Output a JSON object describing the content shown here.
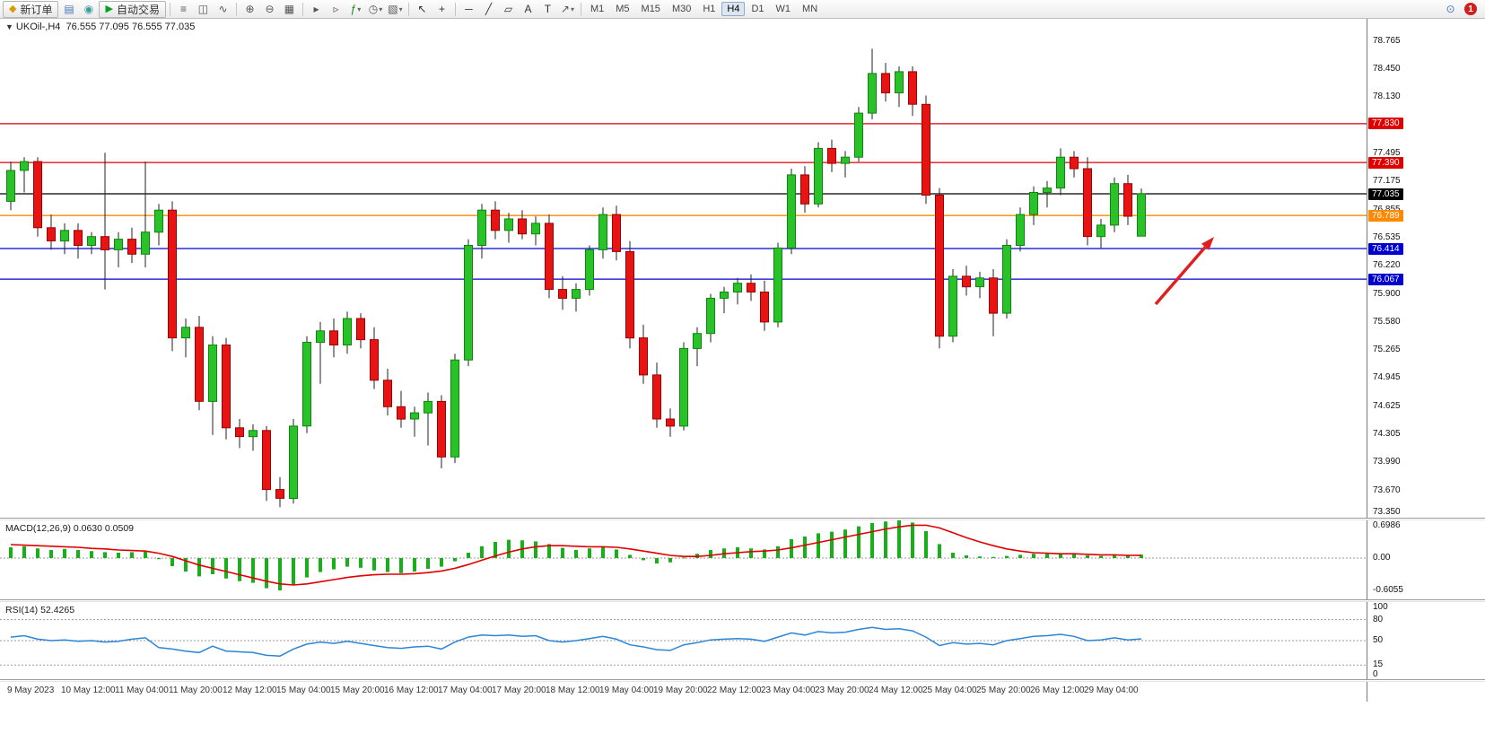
{
  "toolbar": {
    "items": [
      {
        "type": "button",
        "name": "new-order-button",
        "icon": "new-order-icon",
        "glyph": "◆",
        "glyph_color": "#d89b00",
        "label": "新订单"
      },
      {
        "type": "icon",
        "name": "chart-window-icon",
        "glyph": "▤",
        "glyph_color": "#4a74b8"
      },
      {
        "type": "icon",
        "name": "expert-advisor-icon",
        "glyph": "◉",
        "glyph_color": "#3a9ea0"
      },
      {
        "type": "button",
        "name": "auto-trading-button",
        "icon": "autotrading-play-icon",
        "glyph": "▶",
        "glyph_color": "#00a020",
        "label": "自动交易"
      },
      {
        "type": "sep"
      },
      {
        "type": "icon",
        "name": "bar-chart-icon",
        "glyph": "≡",
        "glyph_color": "#555555"
      },
      {
        "type": "icon",
        "name": "candlestick-chart-icon",
        "glyph": "◫",
        "glyph_color": "#555555"
      },
      {
        "type": "icon",
        "name": "line-chart-icon",
        "glyph": "∿",
        "glyph_color": "#555555"
      },
      {
        "type": "sep"
      },
      {
        "type": "icon",
        "name": "zoom-in-icon",
        "glyph": "⊕",
        "glyph_color": "#555555"
      },
      {
        "type": "icon",
        "name": "zoom-out-icon",
        "glyph": "⊖",
        "glyph_color": "#555555"
      },
      {
        "type": "icon",
        "name": "tile-windows-icon",
        "glyph": "▦",
        "glyph_color": "#555555"
      },
      {
        "type": "sep"
      },
      {
        "type": "icon",
        "name": "auto-scroll-icon",
        "glyph": "▸",
        "glyph_color": "#555555"
      },
      {
        "type": "icon",
        "name": "chart-shift-icon",
        "glyph": "▹",
        "glyph_color": "#555555"
      },
      {
        "type": "icon",
        "name": "indicators-icon",
        "glyph": "ƒ",
        "glyph_color": "#0a8a0a",
        "dropdown": true
      },
      {
        "type": "icon",
        "name": "periods-icon",
        "glyph": "◷",
        "glyph_color": "#555555",
        "dropdown": true
      },
      {
        "type": "icon",
        "name": "templates-icon",
        "glyph": "▧",
        "glyph_color": "#555555",
        "dropdown": true
      },
      {
        "type": "sep"
      },
      {
        "type": "icon",
        "name": "cursor-icon",
        "glyph": "↖",
        "glyph_color": "#333333"
      },
      {
        "type": "icon",
        "name": "crosshair-icon",
        "glyph": "+",
        "glyph_color": "#333333"
      },
      {
        "type": "sep"
      },
      {
        "type": "icon",
        "name": "horizontal-line-icon",
        "glyph": "─",
        "glyph_color": "#333333"
      },
      {
        "type": "icon",
        "name": "trendline-icon",
        "glyph": "╱",
        "glyph_color": "#333333"
      },
      {
        "type": "icon",
        "name": "channel-icon",
        "glyph": "▱",
        "glyph_color": "#333333"
      },
      {
        "type": "icon",
        "name": "text-icon",
        "glyph": "A",
        "glyph_color": "#333333"
      },
      {
        "type": "icon",
        "name": "text-label-icon",
        "glyph": "T",
        "glyph_color": "#333333"
      },
      {
        "type": "icon",
        "name": "arrows-icon",
        "glyph": "↗",
        "glyph_color": "#555555",
        "dropdown": true
      },
      {
        "type": "sep"
      }
    ],
    "timeframes": [
      "M1",
      "M5",
      "M15",
      "M30",
      "H1",
      "H4",
      "D1",
      "W1",
      "MN"
    ],
    "active_timeframe": "H4",
    "right_icons": [
      {
        "name": "search-icon",
        "glyph": "⊙",
        "glyph_color": "#4a74b8"
      },
      {
        "name": "notifications-badge",
        "label": "1",
        "badge": true
      }
    ]
  },
  "chart": {
    "dropdown_glyph": "▼",
    "title_symbol": "UKOil-,H4",
    "title_ohlc": "76.555 77.095 76.555 77.035"
  },
  "chart_data": {
    "type": "candlestick",
    "symbol": "UKOil-",
    "timeframe": "H4",
    "title": "UKOil-,H4  O:76.555 H:77.095 L:76.555 C:77.035",
    "price_range": [
      73.35,
      79.02
    ],
    "y_axis_ticks": [
      78.765,
      78.45,
      78.13,
      77.495,
      77.175,
      76.855,
      76.535,
      76.22,
      75.9,
      75.58,
      75.265,
      74.945,
      74.625,
      74.305,
      73.99,
      73.67,
      73.35
    ],
    "hlines": [
      {
        "price": 77.83,
        "color": "#e00000",
        "label": "77.830"
      },
      {
        "price": 77.39,
        "color": "#e00000",
        "label": "77.390"
      },
      {
        "price": 77.035,
        "color": "#000000",
        "label": "77.035"
      },
      {
        "price": 76.789,
        "color": "#ff8a00",
        "label": "76.789"
      },
      {
        "price": 76.414,
        "color": "#0000d0",
        "label": "76.414"
      },
      {
        "price": 76.067,
        "color": "#0000d0",
        "label": "76.067"
      }
    ],
    "x_labels": [
      "9 May 2023",
      "10 May 12:00",
      "11 May 04:00",
      "11 May 20:00",
      "12 May 12:00",
      "15 May 04:00",
      "15 May 20:00",
      "16 May 12:00",
      "17 May 04:00",
      "17 May 20:00",
      "18 May 12:00",
      "19 May 04:00",
      "19 May 20:00",
      "22 May 12:00",
      "23 May 04:00",
      "23 May 20:00",
      "24 May 12:00",
      "25 May 04:00",
      "25 May 20:00",
      "26 May 12:00",
      "29 May 04:00"
    ],
    "label_every_n_candles": 4,
    "candles": [
      [
        76.95,
        77.4,
        76.85,
        77.3
      ],
      [
        77.3,
        77.45,
        77.05,
        77.4
      ],
      [
        77.4,
        77.45,
        76.55,
        76.65
      ],
      [
        76.65,
        76.8,
        76.4,
        76.5
      ],
      [
        76.5,
        76.7,
        76.35,
        76.62
      ],
      [
        76.62,
        76.7,
        76.3,
        76.45
      ],
      [
        76.45,
        76.6,
        76.35,
        76.55
      ],
      [
        76.55,
        77.5,
        75.95,
        76.4
      ],
      [
        76.4,
        76.6,
        76.2,
        76.52
      ],
      [
        76.52,
        76.65,
        76.25,
        76.35
      ],
      [
        76.35,
        77.4,
        76.2,
        76.6
      ],
      [
        76.6,
        76.92,
        76.45,
        76.85
      ],
      [
        76.85,
        76.95,
        75.25,
        75.4
      ],
      [
        75.4,
        75.62,
        75.18,
        75.52
      ],
      [
        75.52,
        75.65,
        74.58,
        74.68
      ],
      [
        74.68,
        75.42,
        74.3,
        75.32
      ],
      [
        75.32,
        75.4,
        74.25,
        74.38
      ],
      [
        74.38,
        74.48,
        74.15,
        74.28
      ],
      [
        74.28,
        74.42,
        74.12,
        74.35
      ],
      [
        74.35,
        74.4,
        73.55,
        73.68
      ],
      [
        73.68,
        73.82,
        73.48,
        73.58
      ],
      [
        73.58,
        74.48,
        73.52,
        74.4
      ],
      [
        74.4,
        75.42,
        74.32,
        75.35
      ],
      [
        75.35,
        75.58,
        74.88,
        75.48
      ],
      [
        75.48,
        75.62,
        75.18,
        75.32
      ],
      [
        75.32,
        75.7,
        75.22,
        75.62
      ],
      [
        75.62,
        75.68,
        75.28,
        75.38
      ],
      [
        75.38,
        75.52,
        74.82,
        74.92
      ],
      [
        74.92,
        75.05,
        74.52,
        74.62
      ],
      [
        74.62,
        74.8,
        74.38,
        74.48
      ],
      [
        74.48,
        74.62,
        74.28,
        74.55
      ],
      [
        74.55,
        74.78,
        74.18,
        74.68
      ],
      [
        74.68,
        74.75,
        73.92,
        74.05
      ],
      [
        74.05,
        75.22,
        73.98,
        75.15
      ],
      [
        75.15,
        76.52,
        75.08,
        76.45
      ],
      [
        76.45,
        76.92,
        76.3,
        76.85
      ],
      [
        76.85,
        76.95,
        76.52,
        76.62
      ],
      [
        76.62,
        76.82,
        76.48,
        76.75
      ],
      [
        76.75,
        76.85,
        76.52,
        76.58
      ],
      [
        76.58,
        76.78,
        76.45,
        76.7
      ],
      [
        76.7,
        76.8,
        75.85,
        75.95
      ],
      [
        75.95,
        76.1,
        75.72,
        75.85
      ],
      [
        75.85,
        76.02,
        75.7,
        75.95
      ],
      [
        75.95,
        76.45,
        75.88,
        76.4
      ],
      [
        76.4,
        76.88,
        76.3,
        76.8
      ],
      [
        76.8,
        76.9,
        76.28,
        76.38
      ],
      [
        76.38,
        76.5,
        75.28,
        75.4
      ],
      [
        75.4,
        75.55,
        74.88,
        74.98
      ],
      [
        74.98,
        75.12,
        74.38,
        74.48
      ],
      [
        74.48,
        74.6,
        74.28,
        74.4
      ],
      [
        74.4,
        75.35,
        74.35,
        75.28
      ],
      [
        75.28,
        75.52,
        75.08,
        75.45
      ],
      [
        75.45,
        75.9,
        75.35,
        75.85
      ],
      [
        75.85,
        75.98,
        75.68,
        75.92
      ],
      [
        75.92,
        76.08,
        75.78,
        76.02
      ],
      [
        76.02,
        76.12,
        75.82,
        75.92
      ],
      [
        75.92,
        76.05,
        75.48,
        75.58
      ],
      [
        75.58,
        76.48,
        75.52,
        76.42
      ],
      [
        76.42,
        77.32,
        76.35,
        77.25
      ],
      [
        77.25,
        77.35,
        76.82,
        76.92
      ],
      [
        76.92,
        77.62,
        76.88,
        77.55
      ],
      [
        77.55,
        77.65,
        77.28,
        77.38
      ],
      [
        77.38,
        77.52,
        77.22,
        77.45
      ],
      [
        77.45,
        78.02,
        77.4,
        77.95
      ],
      [
        77.95,
        78.68,
        77.88,
        78.4
      ],
      [
        78.4,
        78.52,
        78.08,
        78.18
      ],
      [
        78.18,
        78.48,
        78.02,
        78.42
      ],
      [
        78.42,
        78.48,
        77.92,
        78.05
      ],
      [
        78.05,
        78.15,
        76.92,
        77.02
      ],
      [
        77.02,
        77.1,
        75.28,
        75.42
      ],
      [
        75.42,
        76.18,
        75.35,
        76.1
      ],
      [
        76.1,
        76.22,
        75.88,
        75.98
      ],
      [
        75.98,
        76.15,
        75.85,
        76.08
      ],
      [
        76.08,
        76.18,
        75.42,
        75.68
      ],
      [
        75.68,
        76.52,
        75.62,
        76.45
      ],
      [
        76.45,
        76.88,
        76.38,
        76.8
      ],
      [
        76.8,
        77.12,
        76.68,
        77.05
      ],
      [
        77.05,
        77.18,
        76.88,
        77.1
      ],
      [
        77.1,
        77.55,
        77.02,
        77.45
      ],
      [
        77.45,
        77.52,
        77.22,
        77.32
      ],
      [
        77.32,
        77.45,
        76.45,
        76.55
      ],
      [
        76.55,
        76.75,
        76.42,
        76.68
      ],
      [
        76.68,
        77.22,
        76.6,
        77.15
      ],
      [
        77.15,
        77.25,
        76.68,
        76.78
      ],
      [
        76.555,
        77.095,
        76.555,
        77.035
      ]
    ],
    "macd": {
      "label": "MACD(12,26,9) 0.0630 0.0509",
      "y_ticks": [
        {
          "value": 0.6986,
          "label": "0.6986"
        },
        {
          "value": 0.0,
          "label": "0.00"
        },
        {
          "value": -0.6055,
          "label": "-0.6055"
        }
      ],
      "histogram": [
        0.2,
        0.22,
        0.18,
        0.15,
        0.17,
        0.15,
        0.13,
        0.11,
        0.1,
        0.11,
        0.13,
        -0.02,
        -0.15,
        -0.25,
        -0.34,
        -0.3,
        -0.38,
        -0.43,
        -0.46,
        -0.56,
        -0.6,
        -0.5,
        -0.36,
        -0.26,
        -0.21,
        -0.16,
        -0.18,
        -0.23,
        -0.26,
        -0.28,
        -0.25,
        -0.2,
        -0.16,
        -0.06,
        0.1,
        0.22,
        0.3,
        0.34,
        0.33,
        0.31,
        0.26,
        0.19,
        0.15,
        0.18,
        0.22,
        0.16,
        0.06,
        -0.04,
        -0.1,
        -0.08,
        0.01,
        0.08,
        0.15,
        0.18,
        0.2,
        0.18,
        0.16,
        0.22,
        0.35,
        0.4,
        0.46,
        0.49,
        0.53,
        0.59,
        0.65,
        0.68,
        0.7,
        0.66,
        0.5,
        0.26,
        0.1,
        0.05,
        0.03,
        0.02,
        0.04,
        0.06,
        0.08,
        0.08,
        0.09,
        0.07,
        0.05,
        0.04,
        0.05,
        0.06,
        0.063
      ],
      "signal": [
        0.25,
        0.24,
        0.23,
        0.22,
        0.21,
        0.2,
        0.18,
        0.17,
        0.15,
        0.14,
        0.13,
        0.09,
        0.03,
        -0.05,
        -0.13,
        -0.19,
        -0.25,
        -0.31,
        -0.37,
        -0.43,
        -0.48,
        -0.5,
        -0.48,
        -0.44,
        -0.4,
        -0.36,
        -0.33,
        -0.31,
        -0.3,
        -0.3,
        -0.29,
        -0.27,
        -0.24,
        -0.19,
        -0.12,
        -0.04,
        0.04,
        0.11,
        0.17,
        0.21,
        0.23,
        0.23,
        0.22,
        0.21,
        0.21,
        0.2,
        0.17,
        0.13,
        0.09,
        0.05,
        0.03,
        0.03,
        0.05,
        0.08,
        0.1,
        0.12,
        0.13,
        0.15,
        0.19,
        0.24,
        0.29,
        0.34,
        0.39,
        0.44,
        0.49,
        0.54,
        0.58,
        0.61,
        0.61,
        0.56,
        0.47,
        0.38,
        0.3,
        0.23,
        0.17,
        0.13,
        0.1,
        0.09,
        0.08,
        0.08,
        0.07,
        0.06,
        0.06,
        0.05,
        0.0509
      ]
    },
    "rsi": {
      "label": "RSI(14) 52.4265",
      "y_ticks": [
        {
          "value": 100,
          "label": "100"
        },
        {
          "value": 80,
          "label": "80"
        },
        {
          "value": 50,
          "label": "50"
        },
        {
          "value": 15,
          "label": "15"
        },
        {
          "value": 0,
          "label": "0"
        }
      ],
      "levels": [
        80,
        50,
        15
      ],
      "values": [
        55,
        57,
        52,
        50,
        51,
        49,
        50,
        48,
        49,
        52,
        54,
        40,
        38,
        35,
        33,
        42,
        35,
        34,
        33,
        29,
        28,
        38,
        45,
        48,
        46,
        49,
        46,
        43,
        40,
        39,
        41,
        42,
        38,
        48,
        55,
        58,
        57,
        58,
        56,
        57,
        50,
        48,
        50,
        53,
        56,
        52,
        44,
        41,
        37,
        36,
        44,
        47,
        51,
        52,
        53,
        52,
        49,
        55,
        61,
        58,
        63,
        61,
        62,
        66,
        69,
        66,
        67,
        64,
        55,
        43,
        47,
        45,
        46,
        44,
        50,
        53,
        56,
        57,
        59,
        56,
        50,
        51,
        54,
        51,
        52.4265
      ]
    },
    "annotation_arrow": {
      "from": [
        1288,
        318
      ],
      "to": [
        1353,
        243
      ],
      "color": "#e02020"
    },
    "colors": {
      "candle_up": "#29c229",
      "candle_up_border": "#0c870c",
      "candle_down": "#e81414",
      "candle_down_border": "#9c0000",
      "wick": "#222222",
      "macd_bar": "#18b018",
      "macd_signal": "#e00000",
      "rsi_line": "#2a86d8"
    }
  }
}
